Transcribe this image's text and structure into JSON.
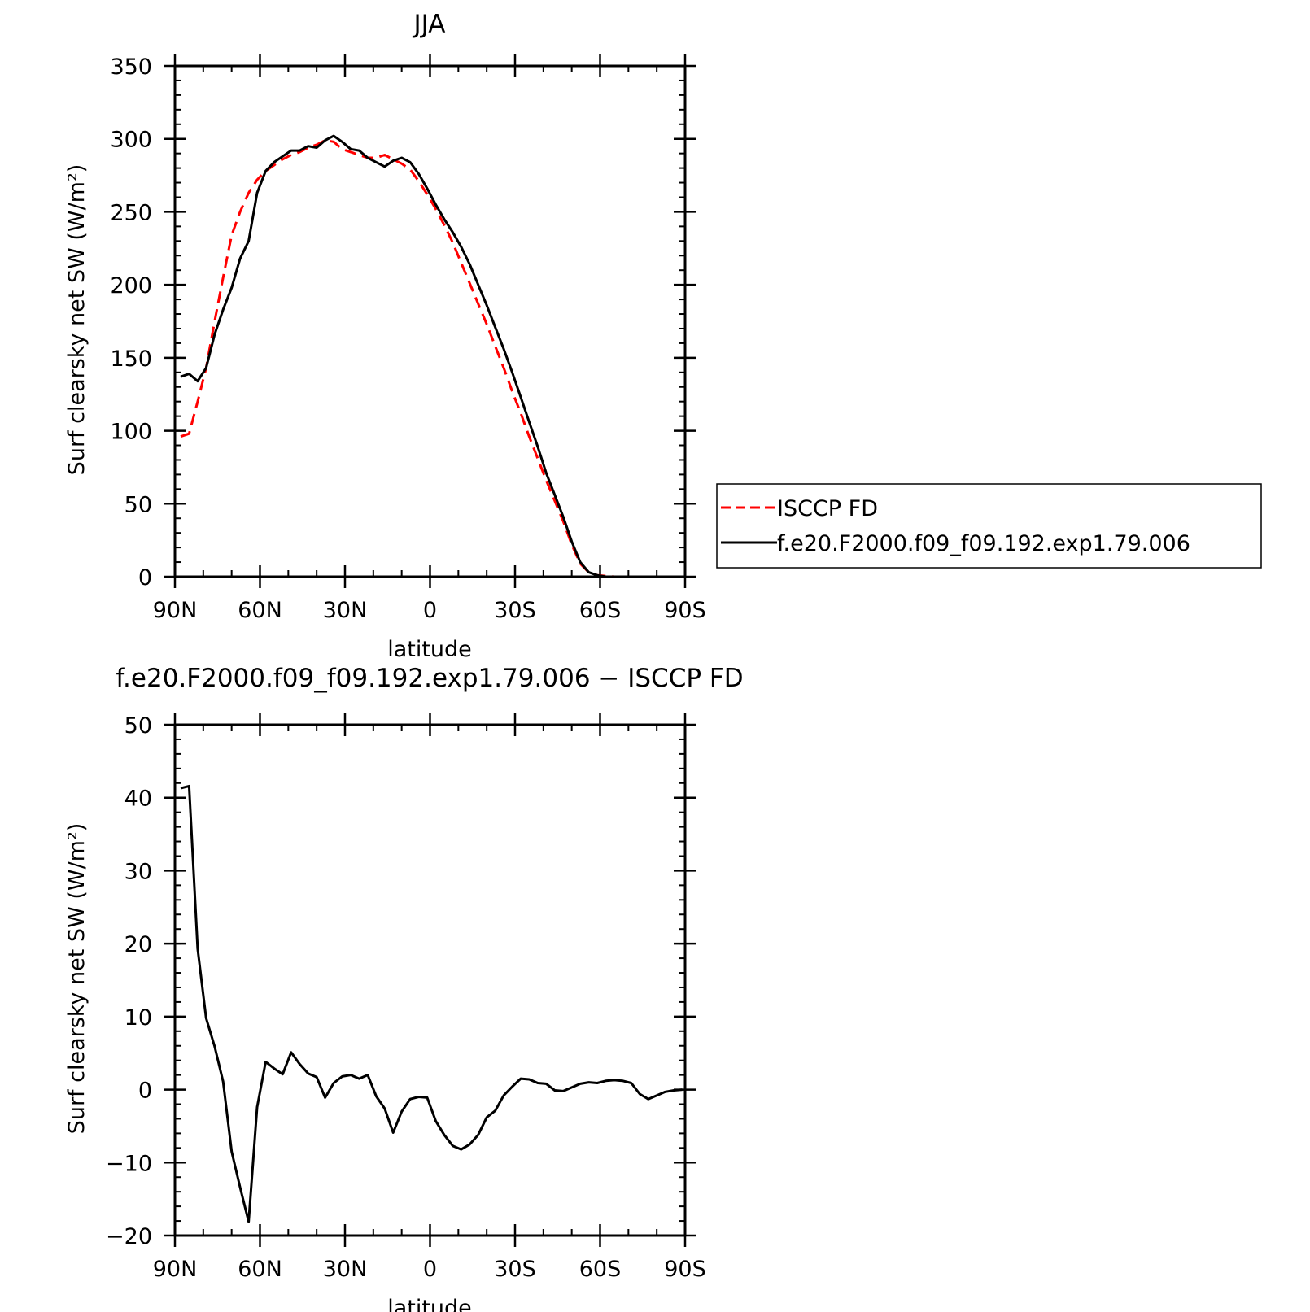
{
  "chart_data": [
    {
      "type": "line",
      "title": "JJA",
      "xlabel": "latitude",
      "ylabel": "Surf clearsky net SW (W/m²)",
      "xlim": [
        90,
        -90
      ],
      "ylim": [
        0,
        350
      ],
      "x_ticks": [
        {
          "value": 90,
          "label": "90N"
        },
        {
          "value": 60,
          "label": "60N"
        },
        {
          "value": 30,
          "label": "30N"
        },
        {
          "value": 0,
          "label": "0"
        },
        {
          "value": -30,
          "label": "30S"
        },
        {
          "value": -60,
          "label": "60S"
        },
        {
          "value": -90,
          "label": "90S"
        }
      ],
      "y_ticks": [
        {
          "value": 0,
          "label": "0"
        },
        {
          "value": 50,
          "label": "50"
        },
        {
          "value": 100,
          "label": "100"
        },
        {
          "value": 150,
          "label": "150"
        },
        {
          "value": 200,
          "label": "200"
        },
        {
          "value": 250,
          "label": "250"
        },
        {
          "value": 300,
          "label": "300"
        },
        {
          "value": 350,
          "label": "350"
        }
      ],
      "legend_position": "right",
      "series": [
        {
          "name": "ISCCP FD",
          "color": "#ff0000",
          "style": "dashed",
          "x": [
            88,
            85,
            82,
            79,
            76,
            73,
            70,
            67,
            64,
            61,
            58,
            55,
            52,
            49,
            46,
            43,
            40,
            37,
            34,
            31,
            28,
            25,
            22,
            19,
            16,
            13,
            10,
            7,
            4,
            1,
            -2,
            -5,
            -8,
            -11,
            -14,
            -17,
            -20,
            -23,
            -26,
            -29,
            -32,
            -35,
            -38,
            -41,
            -44,
            -47,
            -50,
            -53,
            -56,
            -59,
            -62,
            -65,
            -68,
            -71,
            -74,
            -77,
            -80,
            -83,
            -86,
            -89
          ],
          "y": [
            96,
            98,
            120,
            143,
            175,
            205,
            234,
            250,
            263,
            272,
            278,
            282,
            286,
            289,
            291,
            294,
            296,
            299,
            298,
            293,
            291,
            289,
            287,
            287,
            289,
            286,
            283,
            279,
            271,
            262,
            252,
            241,
            229,
            215,
            201,
            187,
            173,
            158,
            143,
            127,
            112,
            96,
            81,
            66,
            52,
            38,
            22,
            9,
            3,
            1,
            0.5,
            0,
            0,
            0,
            0,
            0,
            0,
            0,
            0,
            0
          ]
        },
        {
          "name": "f.e20.F2000.f09_f09.192.exp1.79.006",
          "color": "#000000",
          "style": "solid",
          "x": [
            88,
            85,
            82,
            79,
            76,
            73,
            70,
            67,
            64,
            61,
            58,
            55,
            52,
            49,
            46,
            43,
            40,
            37,
            34,
            31,
            28,
            25,
            22,
            19,
            16,
            13,
            10,
            7,
            4,
            1,
            -2,
            -5,
            -8,
            -11,
            -14,
            -17,
            -20,
            -23,
            -26,
            -29,
            -32,
            -35,
            -38,
            -41,
            -44,
            -47,
            -50,
            -53,
            -56,
            -59,
            -62,
            -65,
            -68,
            -71,
            -74,
            -77,
            -80,
            -83,
            -86,
            -89
          ],
          "y": [
            137,
            139,
            134,
            143,
            166,
            183,
            198,
            218,
            230,
            263,
            278,
            284,
            288,
            292,
            292,
            295,
            294,
            299,
            302,
            298,
            293,
            292,
            287,
            284,
            281,
            285,
            287,
            284,
            276,
            266,
            255,
            245,
            236,
            226,
            214,
            200,
            186,
            171,
            156,
            140,
            123,
            106,
            89,
            71,
            56,
            41,
            24,
            10,
            3,
            1,
            0,
            0,
            0,
            0,
            0,
            0,
            0,
            0,
            0,
            0
          ]
        }
      ]
    },
    {
      "type": "line",
      "title": "f.e20.F2000.f09_f09.192.exp1.79.006 − ISCCP FD",
      "xlabel": "latitude",
      "ylabel": "Surf clearsky net SW (W/m²)",
      "xlim": [
        90,
        -90
      ],
      "ylim": [
        -20,
        50
      ],
      "x_ticks": [
        {
          "value": 90,
          "label": "90N"
        },
        {
          "value": 60,
          "label": "60N"
        },
        {
          "value": 30,
          "label": "30N"
        },
        {
          "value": 0,
          "label": "0"
        },
        {
          "value": -30,
          "label": "30S"
        },
        {
          "value": -60,
          "label": "60S"
        },
        {
          "value": -90,
          "label": "90S"
        }
      ],
      "y_ticks": [
        {
          "value": -20,
          "label": "−20"
        },
        {
          "value": -10,
          "label": "−10"
        },
        {
          "value": 0,
          "label": "0"
        },
        {
          "value": 10,
          "label": "10"
        },
        {
          "value": 20,
          "label": "20"
        },
        {
          "value": 30,
          "label": "30"
        },
        {
          "value": 40,
          "label": "40"
        },
        {
          "value": 50,
          "label": "50"
        }
      ],
      "series": [
        {
          "color": "#000000",
          "style": "solid",
          "x": [
            88,
            85,
            82,
            79,
            76,
            73,
            70,
            67,
            64,
            61,
            58,
            55,
            52,
            49,
            46,
            43,
            40,
            37,
            34,
            31,
            28,
            25,
            22,
            19,
            16,
            13,
            10,
            7,
            4,
            1,
            -2,
            -5,
            -8,
            -11,
            -14,
            -17,
            -20,
            -23,
            -26,
            -29,
            -32,
            -35,
            -38,
            -41,
            -44,
            -47,
            -50,
            -53,
            -56,
            -59,
            -62,
            -65,
            -68,
            -71,
            -74,
            -77,
            -80,
            -83,
            -86,
            -89
          ],
          "y": [
            41.3,
            41.6,
            19.3,
            9.8,
            5.9,
            1.1,
            -8.5,
            -13.4,
            -18.1,
            -2.4,
            3.8,
            2.9,
            2.1,
            5.1,
            3.5,
            2.2,
            1.7,
            -1.1,
            0.9,
            1.8,
            2.0,
            1.5,
            2.0,
            -0.9,
            -2.6,
            -5.9,
            -3.0,
            -1.3,
            -1.0,
            -1.1,
            -4.3,
            -6.2,
            -7.7,
            -8.2,
            -7.5,
            -6.2,
            -3.8,
            -2.9,
            -0.8,
            0.4,
            1.5,
            1.4,
            0.9,
            0.8,
            -0.1,
            -0.2,
            0.3,
            0.8,
            1.0,
            0.9,
            1.2,
            1.3,
            1.2,
            0.9,
            -0.6,
            -1.3,
            -0.8,
            -0.3,
            -0.1,
            0
          ]
        }
      ]
    }
  ]
}
